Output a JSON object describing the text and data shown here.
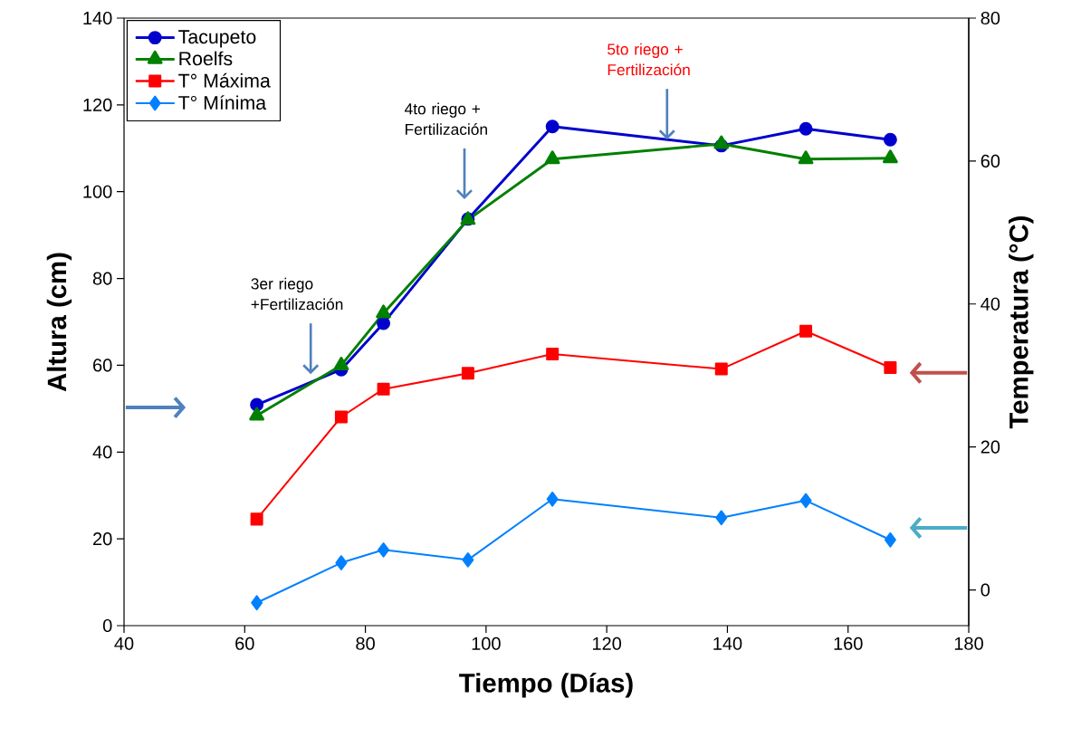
{
  "chart_data": {
    "type": "line",
    "xlabel": "Tiempo (Días)",
    "ylabel": "Altura (cm)",
    "y2label": "Temperatura (°C)",
    "xlim": [
      40,
      180
    ],
    "xticks": [
      40,
      60,
      80,
      100,
      120,
      140,
      160,
      180
    ],
    "ylim": [
      0,
      140
    ],
    "yticks": [
      0,
      20,
      40,
      60,
      80,
      100,
      120,
      140
    ],
    "y2lim": [
      -5,
      80
    ],
    "y2ticks": [
      0,
      20,
      40,
      60,
      80
    ],
    "grid": false,
    "legend": "top left",
    "series": [
      {
        "name": "Tacupeto",
        "color": "#0000cc",
        "marker": "circle",
        "x": [
          62,
          76,
          83,
          97,
          111,
          139,
          153,
          167
        ],
        "values": [
          50.9,
          59,
          69.7,
          93.7,
          115,
          110.6,
          114.5,
          112
        ]
      },
      {
        "name": "Roelfs",
        "color": "#008000",
        "marker": "triangle",
        "x": [
          62,
          76,
          83,
          97,
          111,
          139,
          153,
          167
        ],
        "values": [
          48.4,
          60,
          72,
          93.5,
          107.5,
          111,
          107.5,
          107.7
        ]
      },
      {
        "name": "T° Máxima",
        "color": "#ff0000",
        "marker": "square",
        "axis": "y2",
        "x": [
          62,
          76,
          83,
          97,
          111,
          139,
          153,
          167
        ],
        "values": [
          9.9,
          24.2,
          28.1,
          30.3,
          33.0,
          30.9,
          36.2,
          31.1
        ]
      },
      {
        "name": "T° Mínima",
        "color": "#0080ff",
        "marker": "diamond",
        "axis": "y2",
        "x": [
          62,
          76,
          83,
          97,
          111,
          139,
          153,
          167
        ],
        "values": [
          -1.8,
          3.8,
          5.6,
          4.2,
          12.7,
          10.1,
          12.5,
          7.0
        ]
      }
    ],
    "annotations": [
      "3er riego +Fertilización",
      "4to riego + Fertilización",
      {
        "text": "5to riego + Fertilización",
        "x": 130,
        "y": 112
      }
    ]
  }
}
